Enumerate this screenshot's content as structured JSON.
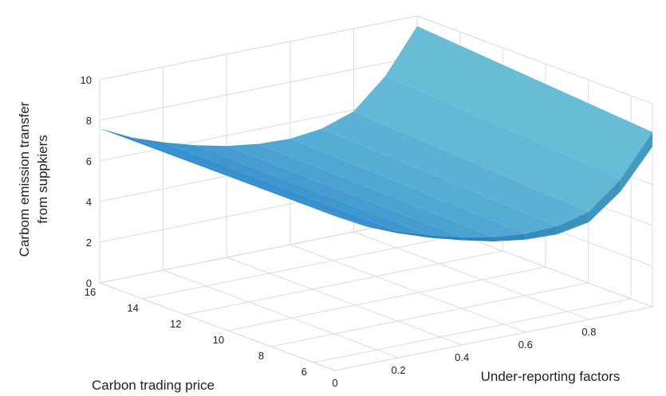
{
  "chart_data": {
    "type": "surface",
    "zlabel_line1": "Carbom emission transfer",
    "zlabel_line2": "from suppkiers",
    "xlabel": "Under-reporting factors",
    "ylabel": "Carbon trading price",
    "xlim": [
      0,
      1
    ],
    "ylim": [
      5,
      16
    ],
    "zlim": [
      0,
      10
    ],
    "x_ticks": [
      "0",
      "0.2",
      "0.4",
      "0.6",
      "0.8"
    ],
    "x_tick_values": [
      0,
      0.2,
      0.4,
      0.6,
      0.8
    ],
    "y_ticks": [
      "6",
      "8",
      "10",
      "12",
      "14",
      "16"
    ],
    "y_tick_values": [
      6,
      8,
      10,
      12,
      14,
      16
    ],
    "z_ticks": [
      "0",
      "2",
      "4",
      "6",
      "8",
      "10"
    ],
    "z_tick_values": [
      0,
      2,
      4,
      6,
      8,
      10
    ],
    "grid": true,
    "surface_color": "#3a87cc",
    "surface_x": [
      0,
      0.1,
      0.2,
      0.3,
      0.4,
      0.5,
      0.6,
      0.7,
      0.8,
      0.9,
      1.0
    ],
    "surface_y": [
      5,
      16
    ],
    "surface_z": [
      [
        7.6,
        6.8,
        6.2,
        5.7,
        5.3,
        5.0,
        4.85,
        4.9,
        5.3,
        6.6,
        8.6
      ],
      [
        7.6,
        6.8,
        6.2,
        5.7,
        5.3,
        5.0,
        4.85,
        4.9,
        5.3,
        6.6,
        8.6
      ]
    ],
    "surface_spread": [
      0,
      0.05,
      0.1,
      0.15,
      0.2,
      0.3,
      0.4,
      0.55,
      0.7,
      0.85,
      1.0
    ]
  }
}
